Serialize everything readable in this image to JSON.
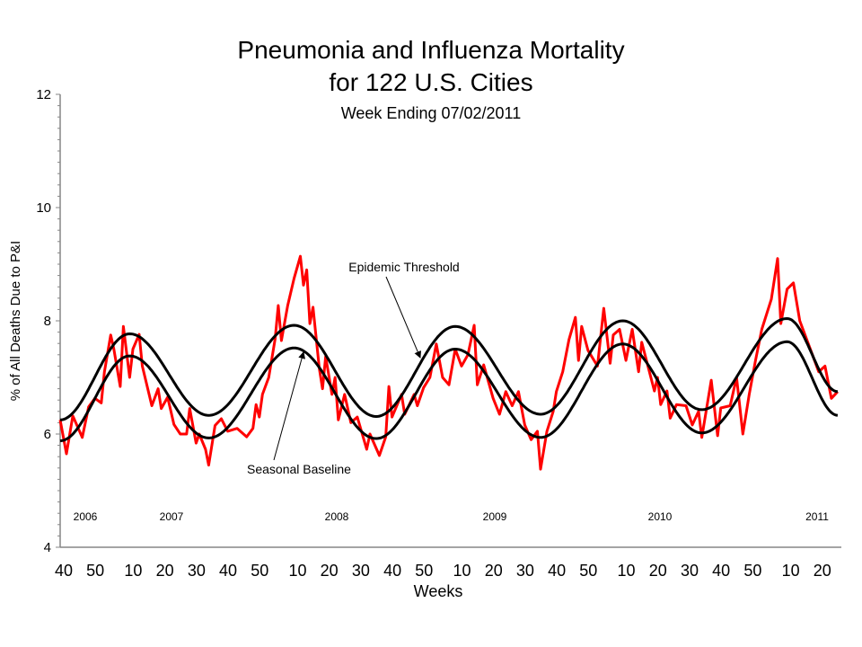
{
  "chart_data": {
    "type": "line",
    "title": "Pneumonia and Influenza Mortality",
    "subtitle": "for 122 U.S. Cities",
    "subtitle2": "Week Ending  07/02/2011",
    "xlabel": "Weeks",
    "ylabel": "% of All Deaths Due to P&I",
    "ylim": [
      4,
      12
    ],
    "yticks": [
      "4",
      "6",
      "8",
      "10",
      "12"
    ],
    "xrange": [
      "2006-40",
      "2011-26"
    ],
    "xticks": [
      {
        "label": "40",
        "week": "2006-40"
      },
      {
        "label": "50",
        "week": "2006-50"
      },
      {
        "label": "10",
        "week": "2007-10"
      },
      {
        "label": "20",
        "week": "2007-20"
      },
      {
        "label": "30",
        "week": "2007-30"
      },
      {
        "label": "40",
        "week": "2007-40"
      },
      {
        "label": "50",
        "week": "2007-50"
      },
      {
        "label": "10",
        "week": "2008-10"
      },
      {
        "label": "20",
        "week": "2008-20"
      },
      {
        "label": "30",
        "week": "2008-30"
      },
      {
        "label": "40",
        "week": "2008-40"
      },
      {
        "label": "50",
        "week": "2008-50"
      },
      {
        "label": "10",
        "week": "2009-10"
      },
      {
        "label": "20",
        "week": "2009-20"
      },
      {
        "label": "30",
        "week": "2009-30"
      },
      {
        "label": "40",
        "week": "2009-40"
      },
      {
        "label": "50",
        "week": "2009-50"
      },
      {
        "label": "10",
        "week": "2010-10"
      },
      {
        "label": "20",
        "week": "2010-20"
      },
      {
        "label": "30",
        "week": "2010-30"
      },
      {
        "label": "40",
        "week": "2010-40"
      },
      {
        "label": "50",
        "week": "2010-50"
      },
      {
        "label": "10",
        "week": "2011-10"
      },
      {
        "label": "20",
        "week": "2011-20"
      }
    ],
    "year_labels": [
      "2006",
      "2007",
      "2008",
      "2009",
      "2010",
      "2011"
    ],
    "grid": false,
    "legend": "none",
    "annotations": {
      "threshold": "Epidemic Threshold",
      "baseline": "Seasonal Baseline"
    },
    "colors": {
      "observed": "#ff0000",
      "baseline": "#000000",
      "threshold": "#000000",
      "axis": "#868686"
    },
    "series": [
      {
        "role": "observed",
        "points": [
          [
            "2006-40",
            6.25
          ],
          [
            "2006-42",
            5.65
          ],
          [
            "2006-44",
            6.32
          ],
          [
            "2006-47",
            5.94
          ],
          [
            "2006-49",
            6.48
          ],
          [
            "2006-51",
            6.63
          ],
          [
            "2007-01",
            6.55
          ],
          [
            "2007-02",
            7.1
          ],
          [
            "2007-04",
            7.75
          ],
          [
            "2007-05",
            7.5
          ],
          [
            "2007-07",
            6.84
          ],
          [
            "2007-08",
            7.9
          ],
          [
            "2007-10",
            7.0
          ],
          [
            "2007-11",
            7.5
          ],
          [
            "2007-13",
            7.76
          ],
          [
            "2007-14",
            7.2
          ],
          [
            "2007-17",
            6.5
          ],
          [
            "2007-19",
            6.8
          ],
          [
            "2007-20",
            6.45
          ],
          [
            "2007-22",
            6.65
          ],
          [
            "2007-24",
            6.17
          ],
          [
            "2007-26",
            6.0
          ],
          [
            "2007-28",
            6.0
          ],
          [
            "2007-29",
            6.45
          ],
          [
            "2007-31",
            5.84
          ],
          [
            "2007-32",
            6.0
          ],
          [
            "2007-34",
            5.73
          ],
          [
            "2007-35",
            5.45
          ],
          [
            "2007-37",
            6.15
          ],
          [
            "2007-39",
            6.27
          ],
          [
            "2007-41",
            6.05
          ],
          [
            "2007-44",
            6.1
          ],
          [
            "2007-47",
            5.95
          ],
          [
            "2007-49",
            6.1
          ],
          [
            "2007-50",
            6.52
          ],
          [
            "2007-51",
            6.3
          ],
          [
            "2007-52",
            6.7
          ],
          [
            "2008-02",
            7.0
          ],
          [
            "2008-04",
            7.68
          ],
          [
            "2008-05",
            8.27
          ],
          [
            "2008-06",
            7.65
          ],
          [
            "2008-08",
            8.27
          ],
          [
            "2008-10",
            8.75
          ],
          [
            "2008-12",
            9.14
          ],
          [
            "2008-13",
            8.63
          ],
          [
            "2008-14",
            8.9
          ],
          [
            "2008-15",
            7.95
          ],
          [
            "2008-16",
            8.24
          ],
          [
            "2008-18",
            7.16
          ],
          [
            "2008-19",
            6.8
          ],
          [
            "2008-20",
            7.37
          ],
          [
            "2008-22",
            6.7
          ],
          [
            "2008-23",
            7.0
          ],
          [
            "2008-24",
            6.25
          ],
          [
            "2008-26",
            6.7
          ],
          [
            "2008-28",
            6.2
          ],
          [
            "2008-30",
            6.3
          ],
          [
            "2008-33",
            5.73
          ],
          [
            "2008-34",
            6.0
          ],
          [
            "2008-37",
            5.62
          ],
          [
            "2008-39",
            5.95
          ],
          [
            "2008-40",
            6.84
          ],
          [
            "2008-41",
            6.3
          ],
          [
            "2008-44",
            6.7
          ],
          [
            "2008-45",
            6.35
          ],
          [
            "2008-48",
            6.7
          ],
          [
            "2008-49",
            6.5
          ],
          [
            "2008-51",
            6.82
          ],
          [
            "2009-01",
            7.0
          ],
          [
            "2009-03",
            7.59
          ],
          [
            "2009-05",
            7.0
          ],
          [
            "2009-07",
            6.87
          ],
          [
            "2009-09",
            7.5
          ],
          [
            "2009-11",
            7.2
          ],
          [
            "2009-13",
            7.4
          ],
          [
            "2009-15",
            7.92
          ],
          [
            "2009-16",
            6.87
          ],
          [
            "2009-18",
            7.22
          ],
          [
            "2009-21",
            6.63
          ],
          [
            "2009-23",
            6.35
          ],
          [
            "2009-25",
            6.75
          ],
          [
            "2009-27",
            6.5
          ],
          [
            "2009-29",
            6.75
          ],
          [
            "2009-31",
            6.16
          ],
          [
            "2009-33",
            5.9
          ],
          [
            "2009-35",
            6.05
          ],
          [
            "2009-36",
            5.38
          ],
          [
            "2009-38",
            6.05
          ],
          [
            "2009-40",
            6.4
          ],
          [
            "2009-41",
            6.75
          ],
          [
            "2009-43",
            7.1
          ],
          [
            "2009-45",
            7.67
          ],
          [
            "2009-47",
            8.06
          ],
          [
            "2009-48",
            7.3
          ],
          [
            "2009-49",
            7.9
          ],
          [
            "2009-51",
            7.48
          ],
          [
            "2010-02",
            7.2
          ],
          [
            "2010-04",
            8.22
          ],
          [
            "2010-06",
            7.25
          ],
          [
            "2010-07",
            7.75
          ],
          [
            "2010-09",
            7.85
          ],
          [
            "2010-11",
            7.3
          ],
          [
            "2010-13",
            7.85
          ],
          [
            "2010-15",
            7.1
          ],
          [
            "2010-16",
            7.62
          ],
          [
            "2010-20",
            6.76
          ],
          [
            "2010-21",
            7.0
          ],
          [
            "2010-22",
            6.52
          ],
          [
            "2010-24",
            6.76
          ],
          [
            "2010-25",
            6.28
          ],
          [
            "2010-27",
            6.52
          ],
          [
            "2010-30",
            6.5
          ],
          [
            "2010-32",
            6.16
          ],
          [
            "2010-34",
            6.4
          ],
          [
            "2010-35",
            5.94
          ],
          [
            "2010-38",
            6.95
          ],
          [
            "2010-40",
            5.97
          ],
          [
            "2010-41",
            6.46
          ],
          [
            "2010-44",
            6.5
          ],
          [
            "2010-46",
            7.0
          ],
          [
            "2010-48",
            6.0
          ],
          [
            "2010-50",
            6.7
          ],
          [
            "2010-52",
            7.3
          ],
          [
            "2011-02",
            7.85
          ],
          [
            "2011-05",
            8.38
          ],
          [
            "2011-07",
            9.1
          ],
          [
            "2011-08",
            7.95
          ],
          [
            "2011-10",
            8.56
          ],
          [
            "2011-12",
            8.67
          ],
          [
            "2011-14",
            8.0
          ],
          [
            "2011-18",
            7.4
          ],
          [
            "2011-20",
            7.1
          ],
          [
            "2011-22",
            7.2
          ],
          [
            "2011-24",
            6.63
          ],
          [
            "2011-26",
            6.75
          ]
        ]
      },
      {
        "role": "threshold",
        "extrema": [
          [
            "2006-40",
            6.25
          ],
          [
            "2007-10",
            7.77
          ],
          [
            "2007-35",
            6.33
          ],
          [
            "2008-10",
            7.92
          ],
          [
            "2008-36",
            6.31
          ],
          [
            "2009-09",
            7.9
          ],
          [
            "2009-36",
            6.35
          ],
          [
            "2010-10",
            8.0
          ],
          [
            "2010-35",
            6.43
          ],
          [
            "2011-10",
            8.04
          ],
          [
            "2011-26",
            6.75
          ]
        ]
      },
      {
        "role": "baseline",
        "extrema": [
          [
            "2006-40",
            5.88
          ],
          [
            "2007-10",
            7.38
          ],
          [
            "2007-35",
            5.93
          ],
          [
            "2008-10",
            7.52
          ],
          [
            "2008-36",
            5.92
          ],
          [
            "2009-09",
            7.5
          ],
          [
            "2009-36",
            5.94
          ],
          [
            "2010-10",
            7.59
          ],
          [
            "2010-35",
            6.02
          ],
          [
            "2011-10",
            7.63
          ],
          [
            "2011-26",
            6.33
          ]
        ]
      }
    ]
  }
}
